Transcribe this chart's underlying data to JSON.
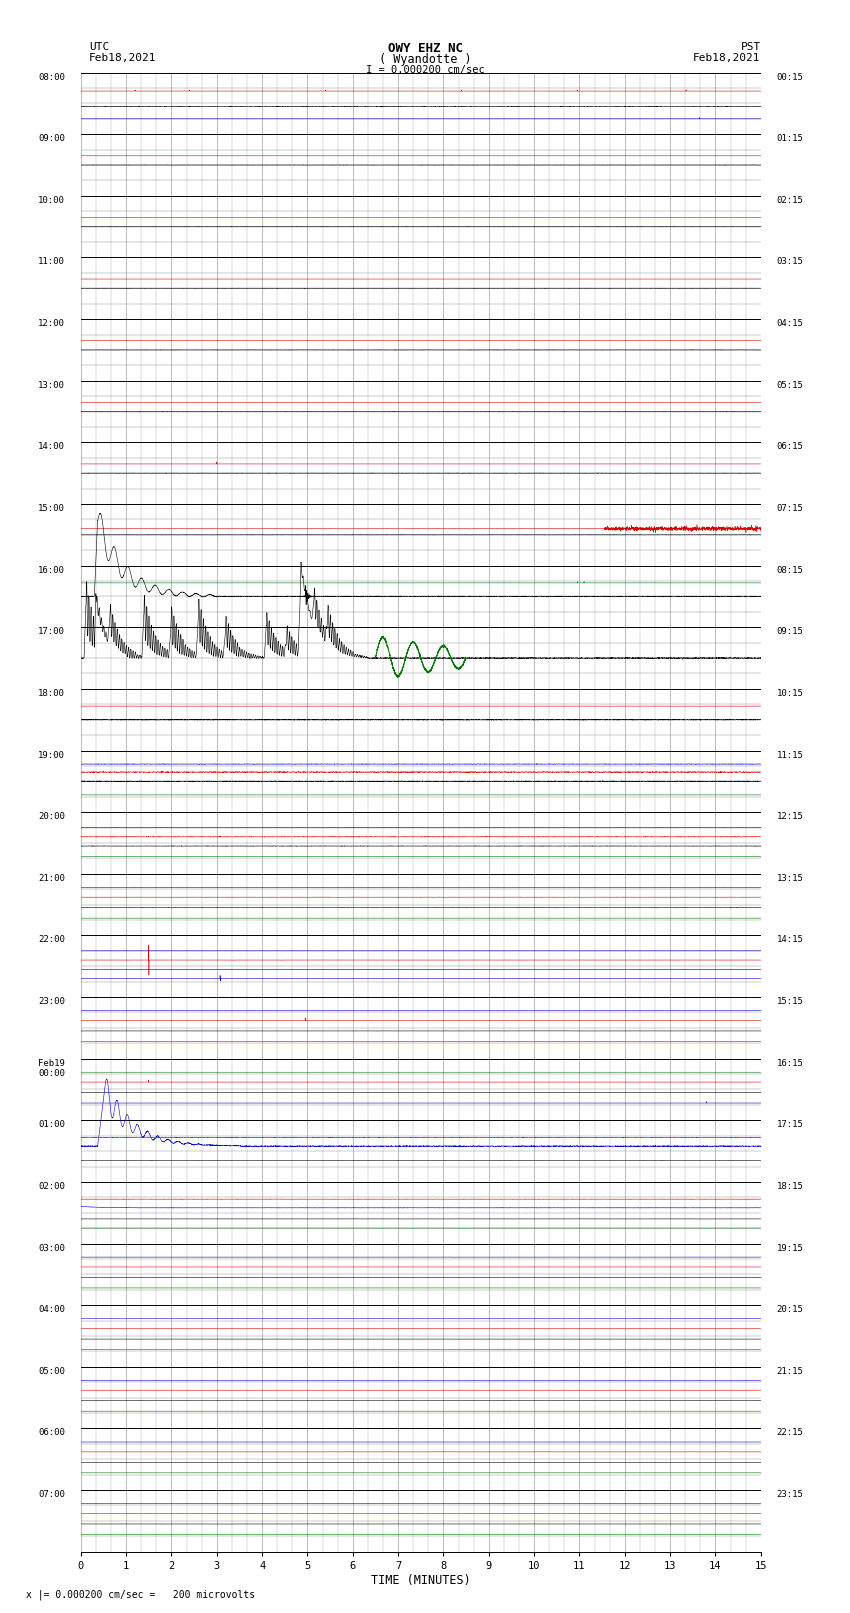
{
  "title_line1": "OWY EHZ NC",
  "title_line2": "( Wyandotte )",
  "title_line3": "I = 0.000200 cm/sec",
  "left_header_line1": "UTC",
  "left_header_line2": "Feb18,2021",
  "right_header_line1": "PST",
  "right_header_line2": "Feb18,2021",
  "xlabel": "TIME (MINUTES)",
  "footer": "x |= 0.000200 cm/sec =   200 microvolts",
  "xlim": [
    0,
    15
  ],
  "xticks": [
    0,
    1,
    2,
    3,
    4,
    5,
    6,
    7,
    8,
    9,
    10,
    11,
    12,
    13,
    14,
    15
  ],
  "num_rows": 24,
  "subrows": 4,
  "utc_labels": [
    "08:00",
    "09:00",
    "10:00",
    "11:00",
    "12:00",
    "13:00",
    "14:00",
    "15:00",
    "16:00",
    "17:00",
    "18:00",
    "19:00",
    "20:00",
    "21:00",
    "22:00",
    "23:00",
    "Feb19\n00:00",
    "01:00",
    "02:00",
    "03:00",
    "04:00",
    "05:00",
    "06:00",
    "07:00"
  ],
  "pst_labels": [
    "00:15",
    "01:15",
    "02:15",
    "03:15",
    "04:15",
    "05:15",
    "06:15",
    "07:15",
    "08:15",
    "09:15",
    "10:15",
    "11:15",
    "12:15",
    "13:15",
    "14:15",
    "15:15",
    "16:15",
    "17:15",
    "18:15",
    "19:15",
    "20:15",
    "21:15",
    "22:15",
    "23:15"
  ],
  "bg_color": "#ffffff",
  "major_grid_color": "#000000",
  "minor_grid_color": "#888888",
  "vert_grid_color": "#888888",
  "trace_color_black": "#000000",
  "trace_color_red": "#dd0000",
  "trace_color_blue": "#0000cc",
  "trace_color_green": "#007700"
}
